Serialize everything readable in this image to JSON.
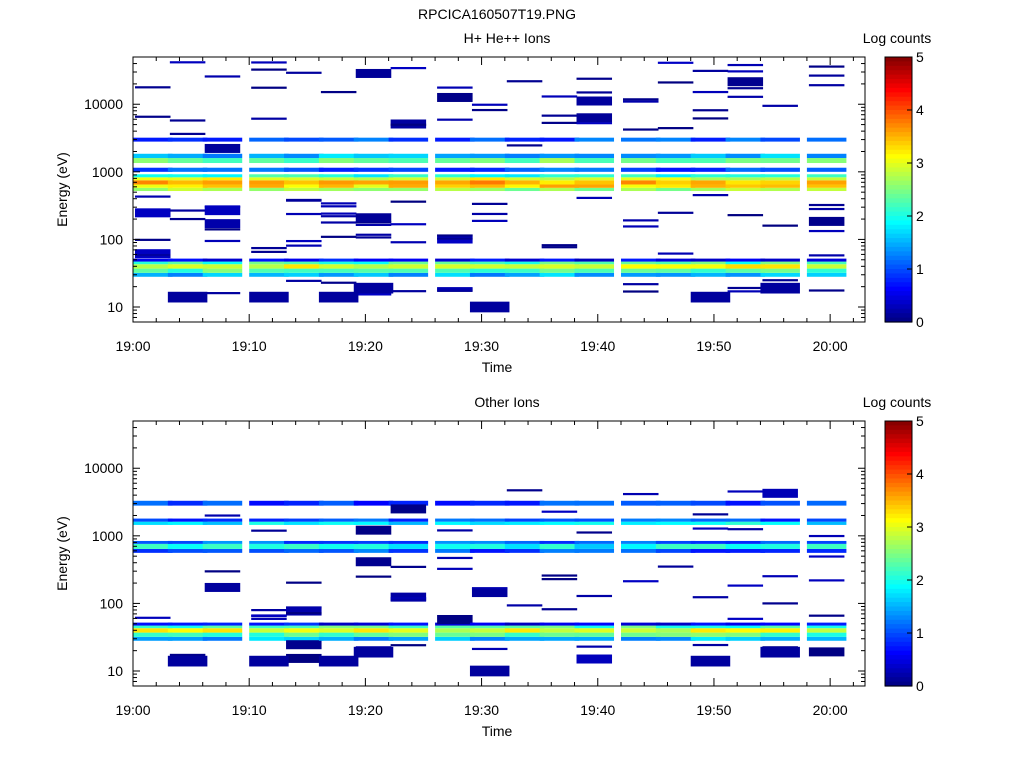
{
  "page": {
    "title": "RPCICA160507T19.PNG"
  },
  "colormap": {
    "stops": [
      "#00007f",
      "#0000ff",
      "#007fff",
      "#00ffff",
      "#7fff7f",
      "#ffff00",
      "#ff7f00",
      "#ff0000",
      "#7f0000"
    ],
    "label": "Log counts",
    "min": 0,
    "max": 5,
    "ticks": [
      "0",
      "1",
      "2",
      "3",
      "4",
      "5"
    ]
  },
  "chart_data": [
    {
      "type": "heatmap",
      "title": "H+ He++ Ions",
      "xlabel": "Time",
      "ylabel": "Energy (eV)",
      "y_scale": "log",
      "xlim": [
        "19:00",
        "20:03"
      ],
      "ylim": [
        6,
        50000
      ],
      "xticks": [
        "19:00",
        "19:10",
        "19:20",
        "19:30",
        "19:40",
        "19:50",
        "20:00"
      ],
      "yticks": [
        "10",
        "100",
        "1000",
        "10000"
      ],
      "time_bins": [
        "19:00",
        "19:03",
        "19:06",
        "19:10",
        "19:13",
        "19:16",
        "19:19",
        "19:22",
        "19:26",
        "19:29",
        "19:32",
        "19:35",
        "19:38",
        "19:42",
        "19:45",
        "19:48",
        "19:51",
        "19:54",
        "19:58"
      ],
      "bands": [
        {
          "emin": 28,
          "emax": 32,
          "level": 1.5
        },
        {
          "emin": 32,
          "emax": 37,
          "level": 2.3
        },
        {
          "emin": 37,
          "emax": 43,
          "level": 3.0
        },
        {
          "emin": 43,
          "emax": 47,
          "level": 2.2
        },
        {
          "emin": 47,
          "emax": 52,
          "level": 0.6
        },
        {
          "emin": 520,
          "emax": 580,
          "level": 2.6
        },
        {
          "emin": 580,
          "emax": 650,
          "level": 3.3
        },
        {
          "emin": 650,
          "emax": 750,
          "level": 3.5
        },
        {
          "emin": 750,
          "emax": 830,
          "level": 3.0
        },
        {
          "emin": 830,
          "emax": 920,
          "level": 2.0
        },
        {
          "emin": 1000,
          "emax": 1150,
          "level": 1.0
        },
        {
          "emin": 1350,
          "emax": 1600,
          "level": 2.4
        },
        {
          "emin": 1600,
          "emax": 1850,
          "level": 1.5
        },
        {
          "emin": 2800,
          "emax": 3200,
          "level": 1.0
        }
      ],
      "sparse": {
        "emin": 15,
        "emax": 45000,
        "count": 16,
        "seed": 7
      }
    },
    {
      "type": "heatmap",
      "title": "Other Ions",
      "xlabel": "Time",
      "ylabel": "Energy (eV)",
      "y_scale": "log",
      "xlim": [
        "19:00",
        "20:03"
      ],
      "ylim": [
        6,
        50000
      ],
      "xticks": [
        "19:00",
        "19:10",
        "19:20",
        "19:30",
        "19:40",
        "19:50",
        "20:00"
      ],
      "yticks": [
        "10",
        "100",
        "1000",
        "10000"
      ],
      "time_bins": [
        "19:00",
        "19:03",
        "19:06",
        "19:10",
        "19:13",
        "19:16",
        "19:19",
        "19:22",
        "19:26",
        "19:29",
        "19:32",
        "19:35",
        "19:38",
        "19:42",
        "19:45",
        "19:48",
        "19:51",
        "19:54",
        "19:58"
      ],
      "bands": [
        {
          "emin": 28,
          "emax": 32,
          "level": 1.5
        },
        {
          "emin": 32,
          "emax": 37,
          "level": 2.3
        },
        {
          "emin": 37,
          "emax": 43,
          "level": 3.0
        },
        {
          "emin": 43,
          "emax": 47,
          "level": 2.2
        },
        {
          "emin": 47,
          "emax": 52,
          "level": 0.6
        },
        {
          "emin": 560,
          "emax": 640,
          "level": 1.0
        },
        {
          "emin": 640,
          "emax": 760,
          "level": 1.9
        },
        {
          "emin": 760,
          "emax": 840,
          "level": 1.1
        },
        {
          "emin": 1450,
          "emax": 1620,
          "level": 1.8
        },
        {
          "emin": 1620,
          "emax": 1800,
          "level": 1.0
        },
        {
          "emin": 2800,
          "emax": 3300,
          "level": 0.9
        }
      ],
      "sparse": {
        "emin": 15,
        "emax": 6000,
        "count": 9,
        "seed": 3
      }
    }
  ]
}
